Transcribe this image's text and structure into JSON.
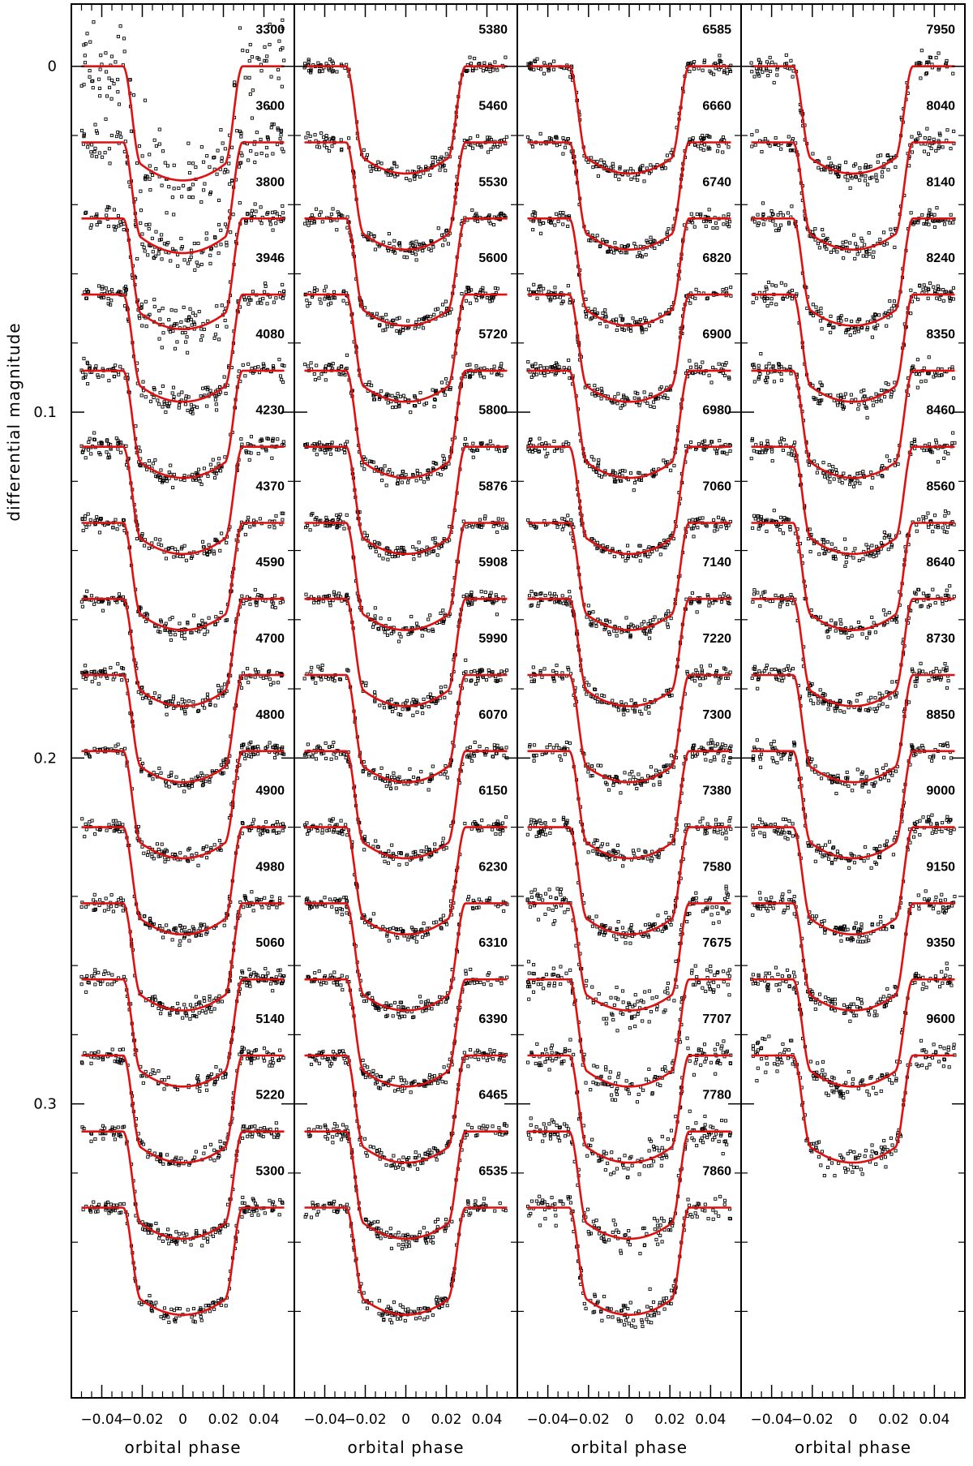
{
  "chart_data": {
    "type": "scatter",
    "title": "",
    "xlabel": "orbital phase",
    "ylabel": "differential magnitude",
    "xlim": [
      -0.055,
      0.055
    ],
    "ylim": [
      0.385,
      -0.018
    ],
    "xticks": [
      -0.04,
      -0.02,
      0,
      0.02,
      0.04
    ],
    "xtick_labels": [
      "-0.04",
      "-0.02",
      "0",
      "0.02",
      "0.04"
    ],
    "yticks": [
      0,
      0.1,
      0.2,
      0.3
    ],
    "ytick_labels": [
      "0",
      "0.1",
      "0.2",
      "0.3"
    ],
    "offset_step": 0.022,
    "fit_color": "#e01010",
    "point_color": "#000000",
    "panels": [
      {
        "name": "panel-1",
        "series": [
          {
            "label": "3300",
            "depth": 0.033,
            "scatter": 0.006
          },
          {
            "label": "3600",
            "depth": 0.032,
            "scatter": 0.0035
          },
          {
            "label": "3800",
            "depth": 0.032,
            "scatter": 0.0025
          },
          {
            "label": "3946",
            "depth": 0.031,
            "scatter": 0.002
          },
          {
            "label": "4080",
            "depth": 0.031,
            "scatter": 0.0015
          },
          {
            "label": "4230",
            "depth": 0.031,
            "scatter": 0.0015
          },
          {
            "label": "4370",
            "depth": 0.031,
            "scatter": 0.0012
          },
          {
            "label": "4590",
            "depth": 0.031,
            "scatter": 0.0012
          },
          {
            "label": "4700",
            "depth": 0.031,
            "scatter": 0.0012
          },
          {
            "label": "4800",
            "depth": 0.031,
            "scatter": 0.0012
          },
          {
            "label": "4900",
            "depth": 0.031,
            "scatter": 0.0012
          },
          {
            "label": "4980",
            "depth": 0.031,
            "scatter": 0.0012
          },
          {
            "label": "5060",
            "depth": 0.031,
            "scatter": 0.0012
          },
          {
            "label": "5140",
            "depth": 0.031,
            "scatter": 0.0012
          },
          {
            "label": "5220",
            "depth": 0.031,
            "scatter": 0.0012
          },
          {
            "label": "5300",
            "depth": 0.031,
            "scatter": 0.0012
          }
        ]
      },
      {
        "name": "panel-2",
        "series": [
          {
            "label": "5380",
            "depth": 0.031,
            "scatter": 0.0012
          },
          {
            "label": "5460",
            "depth": 0.031,
            "scatter": 0.0012
          },
          {
            "label": "5530",
            "depth": 0.031,
            "scatter": 0.0012
          },
          {
            "label": "5600",
            "depth": 0.031,
            "scatter": 0.0012
          },
          {
            "label": "5720",
            "depth": 0.031,
            "scatter": 0.0012
          },
          {
            "label": "5800",
            "depth": 0.031,
            "scatter": 0.0012
          },
          {
            "label": "5876",
            "depth": 0.031,
            "scatter": 0.0013
          },
          {
            "label": "5908",
            "depth": 0.031,
            "scatter": 0.0012
          },
          {
            "label": "5990",
            "depth": 0.031,
            "scatter": 0.0012
          },
          {
            "label": "6070",
            "depth": 0.031,
            "scatter": 0.0012
          },
          {
            "label": "6150",
            "depth": 0.031,
            "scatter": 0.0012
          },
          {
            "label": "6230",
            "depth": 0.031,
            "scatter": 0.0012
          },
          {
            "label": "6310",
            "depth": 0.031,
            "scatter": 0.0012
          },
          {
            "label": "6390",
            "depth": 0.031,
            "scatter": 0.0012
          },
          {
            "label": "6465",
            "depth": 0.031,
            "scatter": 0.0012
          },
          {
            "label": "6535",
            "depth": 0.031,
            "scatter": 0.0012
          }
        ]
      },
      {
        "name": "panel-3",
        "series": [
          {
            "label": "6585",
            "depth": 0.031,
            "scatter": 0.0012
          },
          {
            "label": "6660",
            "depth": 0.031,
            "scatter": 0.0012
          },
          {
            "label": "6740",
            "depth": 0.031,
            "scatter": 0.0012
          },
          {
            "label": "6820",
            "depth": 0.031,
            "scatter": 0.0012
          },
          {
            "label": "6900",
            "depth": 0.031,
            "scatter": 0.0012
          },
          {
            "label": "6980",
            "depth": 0.031,
            "scatter": 0.0012
          },
          {
            "label": "7060",
            "depth": 0.031,
            "scatter": 0.0012
          },
          {
            "label": "7140",
            "depth": 0.031,
            "scatter": 0.0012
          },
          {
            "label": "7220",
            "depth": 0.031,
            "scatter": 0.0013
          },
          {
            "label": "7300",
            "depth": 0.031,
            "scatter": 0.0013
          },
          {
            "label": "7380",
            "depth": 0.031,
            "scatter": 0.0015
          },
          {
            "label": "7580",
            "depth": 0.031,
            "scatter": 0.0025
          },
          {
            "label": "7675",
            "depth": 0.031,
            "scatter": 0.0025
          },
          {
            "label": "7707",
            "depth": 0.031,
            "scatter": 0.0022
          },
          {
            "label": "7780",
            "depth": 0.031,
            "scatter": 0.0022
          },
          {
            "label": "7860",
            "depth": 0.031,
            "scatter": 0.002
          }
        ]
      },
      {
        "name": "panel-4",
        "series": [
          {
            "label": "7950",
            "depth": 0.031,
            "scatter": 0.0018
          },
          {
            "label": "8040",
            "depth": 0.031,
            "scatter": 0.0016
          },
          {
            "label": "8140",
            "depth": 0.031,
            "scatter": 0.0016
          },
          {
            "label": "8240",
            "depth": 0.031,
            "scatter": 0.0016
          },
          {
            "label": "8350",
            "depth": 0.031,
            "scatter": 0.0015
          },
          {
            "label": "8460",
            "depth": 0.031,
            "scatter": 0.0015
          },
          {
            "label": "8560",
            "depth": 0.031,
            "scatter": 0.0015
          },
          {
            "label": "8640",
            "depth": 0.031,
            "scatter": 0.0015
          },
          {
            "label": "8730",
            "depth": 0.031,
            "scatter": 0.0015
          },
          {
            "label": "8850",
            "depth": 0.031,
            "scatter": 0.0015
          },
          {
            "label": "9000",
            "depth": 0.031,
            "scatter": 0.0015
          },
          {
            "label": "9150",
            "depth": 0.031,
            "scatter": 0.0015
          },
          {
            "label": "9350",
            "depth": 0.031,
            "scatter": 0.0018
          },
          {
            "label": "9600",
            "depth": 0.031,
            "scatter": 0.0022
          }
        ]
      }
    ]
  }
}
